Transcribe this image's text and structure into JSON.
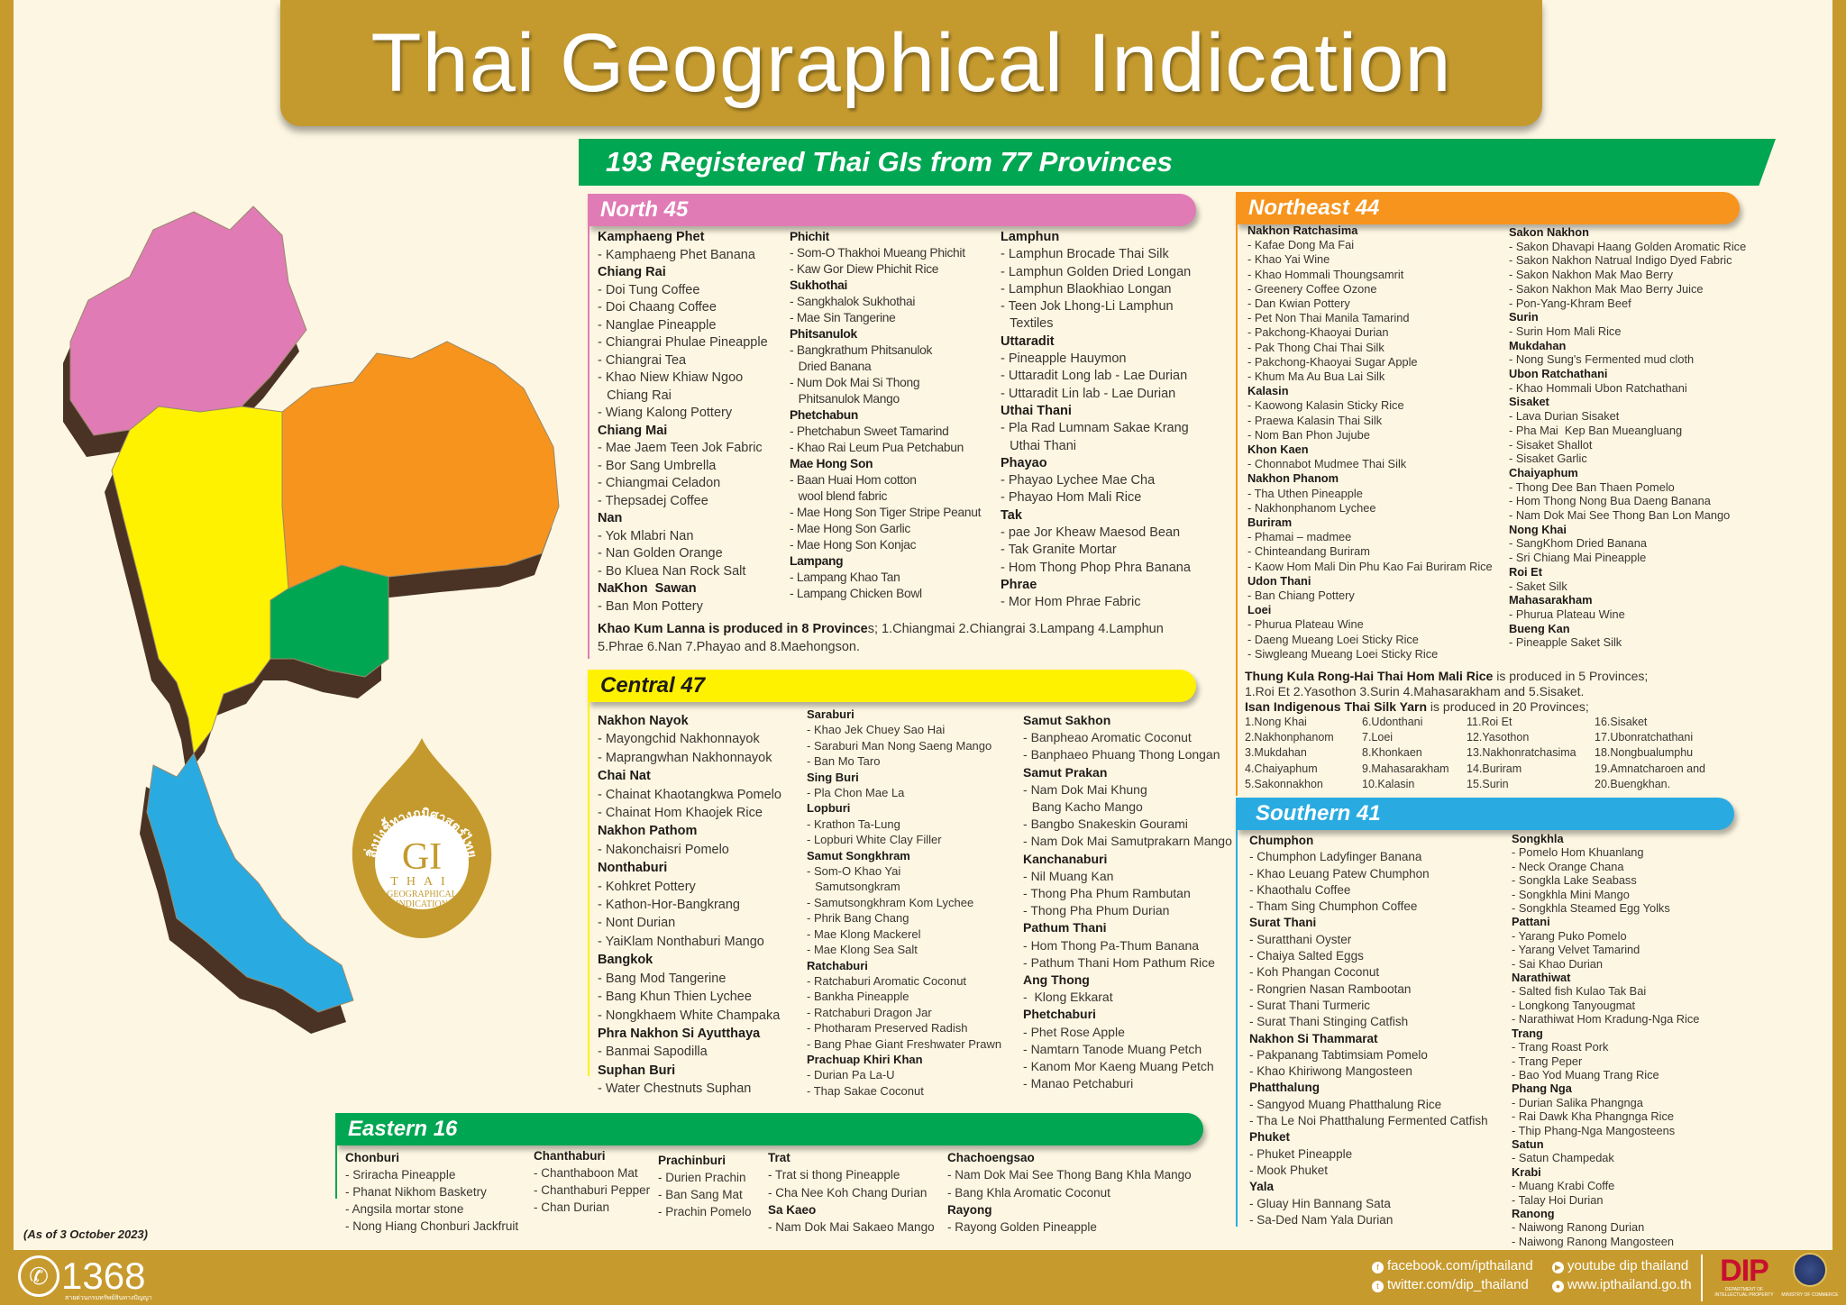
{
  "title": "Thai Geographical Indication",
  "subtitle": "193 Registered Thai GIs from 77 Provinces",
  "colors": {
    "gold": "#c79a2d",
    "cream": "#fdf6e2",
    "green": "#00a651",
    "north": "#e07bb5",
    "northeast": "#f7941d",
    "central": "#fff200",
    "eastern": "#00a651",
    "southern": "#29abe2"
  },
  "north": {
    "header": "North 45",
    "columns": [
      [
        {
          "name": "Kamphaeng Phet",
          "items": [
            "Kamphaeng Phet Banana"
          ]
        },
        {
          "name": "Chiang Rai",
          "items": [
            "Doi Tung Coffee",
            "Doi Chaang Coffee",
            "Nanglae Pineapple",
            "Chiangrai Phulae Pineapple",
            "Chiangrai Tea",
            "Khao Niew Khiaw Ngoo\nChiang Rai",
            "Wiang Kalong Pottery"
          ]
        },
        {
          "name": "Chiang Mai",
          "items": [
            "Mae Jaem Teen Jok Fabric",
            "Bor Sang Umbrella",
            "Chiangmai Celadon",
            "Thepsadej Coffee"
          ]
        },
        {
          "name": "Nan",
          "items": [
            "Yok Mlabri Nan",
            "Nan Golden Orange",
            "Bo Kluea Nan Rock Salt"
          ]
        },
        {
          "name": "NaKhon  Sawan",
          "items": [
            "Ban Mon Pottery"
          ]
        }
      ],
      [
        {
          "name": "Phichit",
          "items": [
            "Som-O Thakhoi Mueang Phichit",
            "Kaw Gor Diew Phichit Rice"
          ]
        },
        {
          "name": "Sukhothai",
          "items": [
            "Sangkhalok Sukhothai",
            "Mae Sin Tangerine"
          ]
        },
        {
          "name": "Phitsanulok",
          "items": [
            "Bangkrathum Phitsanulok\nDried Banana",
            "Num Dok Mai Si Thong\nPhitsanulok Mango"
          ]
        },
        {
          "name": "Phetchabun",
          "items": [
            "Phetchabun Sweet Tamarind",
            "Khao Rai Leum Pua Petchabun"
          ]
        },
        {
          "name": "Mae Hong Son",
          "items": [
            "Baan Huai Hom cotton\nwool blend fabric",
            "Mae Hong Son Tiger Stripe Peanut",
            "Mae Hong Son Garlic",
            "Mae Hong Son Konjac"
          ]
        },
        {
          "name": "Lampang",
          "items": [
            "Lampang Khao Tan",
            "Lampang Chicken Bowl"
          ]
        }
      ],
      [
        {
          "name": "Lamphun",
          "items": [
            "Lamphun Brocade Thai Silk",
            "Lamphun Golden Dried Longan",
            "Lamphun Blaokhiao Longan",
            "Teen Jok Lhong-Li Lamphun\nTextiles"
          ]
        },
        {
          "name": "Uttaradit",
          "items": [
            "Pineapple Hauymon",
            "Uttaradit Long lab - Lae Durian",
            "Uttaradit Lin lab - Lae Durian"
          ]
        },
        {
          "name": "Uthai Thani",
          "items": [
            "Pla Rad Lumnam Sakae Krang\nUthai Thani"
          ]
        },
        {
          "name": "Phayao",
          "items": [
            "Phayao Lychee Mae Cha",
            "Phayao Hom Mali Rice"
          ]
        },
        {
          "name": "Tak",
          "items": [
            "pae Jor Kheaw Maesod Bean",
            "Tak Granite Mortar",
            "Hom Thong Phop Phra Banana"
          ]
        },
        {
          "name": "Phrae",
          "items": [
            "Mor Hom Phrae Fabric"
          ]
        }
      ]
    ],
    "note": {
      "bold": "Khao Kum Lanna is produced in 8 Province",
      "text": "s; 1.Chiangmai 2.Chiangrai  3.Lampang 4.Lamphun 5.Phrae 6.Nan 7.Phayao and 8.Maehongson."
    }
  },
  "central": {
    "header": "Central 47",
    "columns": [
      [
        {
          "name": "Nakhon Nayok",
          "items": [
            "Mayongchid Nakhonnayok",
            "Maprangwhan Nakhonnayok"
          ]
        },
        {
          "name": "Chai Nat",
          "items": [
            "Chainat Khaotangkwa Pomelo",
            "Chainat Hom Khaojek Rice"
          ]
        },
        {
          "name": "Nakhon Pathom",
          "items": [
            "Nakonchaisri Pomelo"
          ]
        },
        {
          "name": "Nonthaburi",
          "items": [
            "Kohkret Pottery",
            "Kathon-Hor-Bangkrang",
            "Nont Durian",
            "YaiKlam Nonthaburi Mango"
          ]
        },
        {
          "name": "Bangkok",
          "items": [
            "Bang Mod Tangerine",
            "Bang Khun Thien Lychee",
            "Nongkhaem White Champaka"
          ]
        },
        {
          "name": "Phra Nakhon Si Ayutthaya",
          "items": [
            "Banmai Sapodilla"
          ]
        },
        {
          "name": "Suphan Buri",
          "items": [
            "Water Chestnuts Suphan"
          ]
        }
      ],
      [
        {
          "name": "Saraburi",
          "items": [
            "Khao Jek Chuey Sao Hai",
            "Saraburi Man Nong Saeng Mango",
            "Ban Mo Taro"
          ]
        },
        {
          "name": "Sing Buri",
          "items": [
            "Pla Chon Mae La"
          ]
        },
        {
          "name": "Lopburi",
          "items": [
            "Krathon Ta-Lung",
            "Lopburi White Clay Filler"
          ]
        },
        {
          "name": "Samut Songkhram",
          "items": [
            "Som-O Khao Yai\nSamutsongkram",
            "Samutsongkhram Kom Lychee",
            "Phrik Bang Chang",
            "Mae Klong Mackerel",
            "Mae Klong Sea Salt"
          ]
        },
        {
          "name": "Ratchaburi",
          "items": [
            "Ratchaburi Aromatic Coconut",
            "Bankha Pineapple",
            "Ratchaburi Dragon Jar",
            "Photharam Preserved Radish",
            "Bang Phae Giant Freshwater Prawn"
          ]
        },
        {
          "name": "Prachuap Khiri Khan",
          "items": [
            "Durian Pa La-U",
            "Thap Sakae Coconut"
          ]
        }
      ],
      [
        {
          "name": "Samut Sakhon",
          "items": [
            "Banpheao Aromatic Coconut",
            "Banphaeo Phuang Thong Longan"
          ]
        },
        {
          "name": "Samut Prakan",
          "items": [
            "Nam Dok Mai Khung\nBang Kacho Mango",
            "Bangbo Snakeskin Gourami",
            "Nam Dok Mai Samutprakarn Mango"
          ]
        },
        {
          "name": "Kanchanaburi",
          "items": [
            "Nil Muang Kan",
            "Thong Pha Phum Rambutan",
            "Thong Pha Phum Durian"
          ]
        },
        {
          "name": "Pathum Thani",
          "items": [
            "Hom Thong Pa-Thum Banana",
            "Pathum Thani Hom Pathum Rice"
          ]
        },
        {
          "name": "Ang Thong",
          "items": [
            " Klong Ekkarat"
          ]
        },
        {
          "name": "Phetchaburi",
          "items": [
            "Phet Rose Apple",
            "Namtarn Tanode Muang Petch",
            "Kanom Mor Kaeng Muang Petch",
            "Manao Petchaburi"
          ]
        }
      ]
    ]
  },
  "eastern": {
    "header": "Eastern 16",
    "columns": [
      [
        {
          "name": "Chonburi",
          "items": [
            "Sriracha Pineapple",
            "Phanat Nikhom Basketry",
            "Angsila mortar stone",
            "Nong Hiang Chonburi Jackfruit"
          ]
        }
      ],
      [
        {
          "name": "Chanthaburi",
          "items": [
            "Chanthaboon Mat",
            "Chanthaburi Pepper",
            "Chan Durian"
          ]
        }
      ],
      [
        {
          "name": "Prachinburi",
          "items": [
            "Durien Prachin",
            "Ban Sang Mat",
            "Prachin Pomelo"
          ]
        }
      ],
      [
        {
          "name": "Trat",
          "items": [
            "Trat si thong Pineapple",
            "Cha Nee Koh Chang Durian"
          ]
        },
        {
          "name": "Sa Kaeo",
          "items": [
            "Nam Dok Mai Sakaeo Mango"
          ]
        }
      ],
      [
        {
          "name": "Chachoengsao",
          "items": [
            "Nam Dok Mai See Thong Bang Khla Mango",
            "Bang Khla Aromatic Coconut"
          ]
        },
        {
          "name": "Rayong",
          "items": [
            "Rayong Golden Pineapple"
          ]
        }
      ]
    ]
  },
  "northeast": {
    "header": "Northeast 44",
    "columns": [
      [
        {
          "name": "Nakhon Ratchasima",
          "items": [
            "Kafae Dong Ma Fai",
            "Khao Yai Wine",
            "Khao Hommali Thoungsamrit",
            "Greenery Coffee Ozone",
            "Dan Kwian Pottery",
            "Pet Non Thai Manila Tamarind",
            "Pakchong-Khaoyai Durian",
            "Pak Thong Chai Thai Silk",
            "Pakchong-Khaoyai Sugar Apple",
            "Khum Ma Au Bua Lai Silk"
          ]
        },
        {
          "name": "Kalasin",
          "items": [
            "Kaowong Kalasin Sticky Rice",
            "Praewa Kalasin Thai Silk",
            "Nom Ban Phon Jujube"
          ]
        },
        {
          "name": "Khon Kaen",
          "items": [
            "Chonnabot Mudmee Thai Silk"
          ]
        },
        {
          "name": "Nakhon Phanom",
          "items": [
            "Tha Uthen Pineapple",
            "Nakhonphanom Lychee"
          ]
        },
        {
          "name": "Buriram",
          "items": [
            "Phamai – madmee",
            "Chinteandang Buriram",
            "Kaow Hom Mali Din Phu Kao Fai Buriram Rice"
          ]
        },
        {
          "name": "Udon Thani",
          "items": [
            "Ban Chiang Pottery"
          ]
        },
        {
          "name": "Loei",
          "items": [
            "Phurua Plateau Wine",
            "Daeng Mueang Loei Sticky Rice",
            "Siwgleang Mueang Loei Sticky Rice"
          ]
        }
      ],
      [
        {
          "name": "Sakon Nakhon",
          "items": [
            "Sakon Dhavapi Haang Golden Aromatic Rice",
            "Sakon Nakhon Natrual Indigo Dyed Fabric",
            "Sakon Nakhon Mak Mao Berry",
            "Sakon Nakhon Mak Mao Berry Juice",
            "Pon-Yang-Khram Beef"
          ]
        },
        {
          "name": "Surin",
          "items": [
            "Surin Hom Mali Rice"
          ]
        },
        {
          "name": "Mukdahan",
          "items": [
            "Nong Sung's Fermented mud cloth"
          ]
        },
        {
          "name": "Ubon Ratchathani",
          "items": [
            "Khao Hommali Ubon Ratchathani"
          ]
        },
        {
          "name": "Sisaket",
          "items": [
            "Lava Durian Sisaket",
            "Pha Mai  Kep Ban Mueangluang",
            "Sisaket Shallot",
            "Sisaket Garlic"
          ]
        },
        {
          "name": "Chaiyaphum",
          "items": [
            "Thong Dee Ban Thaen Pomelo",
            "Hom Thong Nong Bua Daeng Banana",
            "Nam Dok Mai See Thong Ban Lon Mango"
          ]
        },
        {
          "name": "Nong Khai",
          "items": [
            "SangKhom Dried Banana",
            "Sri Chiang Mai Pineapple"
          ]
        },
        {
          "name": "Roi Et",
          "items": [
            "Saket Silk"
          ]
        },
        {
          "name": "Mahasarakham",
          "items": [
            "Phurua Plateau Wine"
          ]
        },
        {
          "name": "Bueng Kan",
          "items": [
            "Pineapple Saket Silk"
          ]
        }
      ]
    ],
    "note1": {
      "bold": "Thung Kula Rong-Hai Thai Hom Mali Rice",
      "text": " is produced in 5 Provinces;",
      "line2": "1.Roi Et 2.Yasothon 3.Surin 4.Mahasarakham and 5.Sisaket."
    },
    "note2": {
      "bold": "Isan Indigenous Thai Silk Yarn",
      "text": " is produced in 20 Provinces;",
      "provinces": [
        "1.Nong Khai",
        "2.Nakhonphanom",
        "3.Mukdahan",
        "4.Chaiyaphum",
        "5.Sakonnakhon",
        "6.Udonthani",
        "7.Loei",
        "8.Khonkaen",
        "9.Mahasarakham",
        "10.Kalasin",
        "11.Roi Et",
        "12.Yasothon",
        "13.Nakhonratchasima",
        "14.Buriram",
        "15.Surin",
        "16.Sisaket",
        "17.Ubonratchathani",
        "18.Nongbualumphu",
        "19.Amnatcharoen and",
        "20.Buengkhan."
      ]
    }
  },
  "southern": {
    "header": "Southern 41",
    "columns": [
      [
        {
          "name": "Chumphon",
          "items": [
            "Chumphon Ladyfinger Banana",
            "Khao Leuang Patew Chumphon",
            "Khaothalu Coffee",
            "Tham Sing Chumphon Coffee"
          ]
        },
        {
          "name": "Surat Thani",
          "items": [
            "Suratthani Oyster",
            "Chaiya Salted Eggs",
            "Koh Phangan Coconut",
            "Rongrien Nasan Rambootan",
            "Surat Thani Turmeric",
            "Surat Thani Stinging Catfish"
          ]
        },
        {
          "name": "Nakhon Si Thammarat",
          "items": [
            "Pakpanang Tabtimsiam Pomelo",
            "Khao Khiriwong Mangosteen"
          ]
        },
        {
          "name": "Phatthalung",
          "items": [
            "Sangyod Muang Phatthalung Rice",
            "Tha Le Noi Phatthalung Fermented Catfish"
          ]
        },
        {
          "name": "Phuket",
          "items": [
            "Phuket Pineapple",
            "Mook Phuket"
          ]
        },
        {
          "name": "Yala",
          "items": [
            "Gluay Hin Bannang Sata",
            "Sa-Ded Nam Yala Durian"
          ]
        }
      ],
      [
        {
          "name": "Songkhla",
          "items": [
            "Pomelo Hom Khuanlang",
            "Neck Orange Chana",
            "Songkla Lake Seabass",
            "Songkhla Mini Mango",
            "Songkhla Steamed Egg Yolks"
          ]
        },
        {
          "name": "Pattani",
          "items": [
            "Yarang Puko Pomelo",
            "Yarang Velvet Tamarind",
            "Sai Khao Durian"
          ]
        },
        {
          "name": "Narathiwat",
          "items": [
            "Salted fish Kulao Tak Bai",
            "Longkong Tanyougmat",
            "Narathiwat Hom Kradung-Nga Rice"
          ]
        },
        {
          "name": "Trang",
          "items": [
            "Trang Roast Pork",
            "Trang Peper",
            "Bao Yod Muang Trang Rice"
          ]
        },
        {
          "name": "Phang Nga",
          "items": [
            "Durian Salika Phangnga",
            "Rai Dawk Kha Phangnga Rice",
            "Thip Phang-Nga Mangosteens"
          ]
        },
        {
          "name": "Satun",
          "items": [
            "Satun Champedak"
          ]
        },
        {
          "name": "Krabi",
          "items": [
            "Muang Krabi Coffe",
            "Talay Hoi Durian"
          ]
        },
        {
          "name": "Ranong",
          "items": [
            "Naiwong Ranong Durian",
            "Naiwong Ranong Mangosteen"
          ]
        }
      ]
    ]
  },
  "gi_logo": {
    "thai_text": "สิ่งบ่งชี้ทางภูมิศาสตร์ไทย",
    "mark": "GI",
    "line1": "THAI",
    "line2": "GEOGRAPHICAL",
    "line3": "INDICATION"
  },
  "as_of": "(As of 3 October 2023)",
  "footer": {
    "hotline": "1368",
    "hotline_caption": "สายด่วนกรมทรัพย์สินทางปัญญา",
    "facebook": "facebook.com/ipthailand",
    "twitter": "twitter.com/dip_thailand",
    "youtube": "youtube dip thailand",
    "website": "www.ipthailand.go.th",
    "dip_logo": "DIP",
    "dip_caption": "DEPARTMENT OF INTELLECTUAL PROPERTY",
    "moc_caption": "MINISTRY OF COMMERCE"
  }
}
